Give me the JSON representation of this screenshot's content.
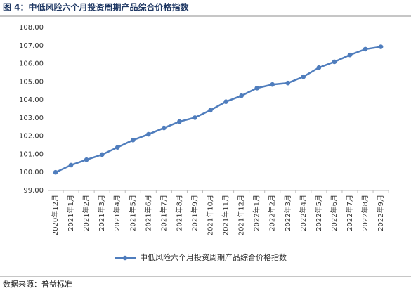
{
  "chart_data": {
    "type": "line",
    "title": "图 4：中低风险六个月投资周期产品综合价格指数",
    "source": "数据来源：普益标准",
    "categories": [
      "2020年12月",
      "2021年1月",
      "2021年2月",
      "2021年3月",
      "2021年4月",
      "2021年5月",
      "2021年6月",
      "2021年7月",
      "2021年8月",
      "2021年9月",
      "2021年10月",
      "2021年11月",
      "2021年12月",
      "2022年1月",
      "2022年2月",
      "2022年3月",
      "2022年4月",
      "2022年5月",
      "2022年6月",
      "2022年7月",
      "2022年8月",
      "2022年9月"
    ],
    "series": [
      {
        "name": "中低风险六个月投资周期产品综合价格指数",
        "color": "#4f7dbd",
        "values": [
          100.0,
          100.4,
          100.7,
          100.98,
          101.38,
          101.78,
          102.1,
          102.45,
          102.8,
          103.02,
          103.43,
          103.9,
          104.23,
          104.65,
          104.85,
          104.93,
          105.28,
          105.78,
          106.1,
          106.48,
          106.8,
          106.93
        ]
      }
    ],
    "ylim": [
      99,
      108
    ],
    "yticks": [
      {
        "value": 99,
        "label": "99.00"
      },
      {
        "value": 100,
        "label": "100.00"
      },
      {
        "value": 101,
        "label": "101.00"
      },
      {
        "value": 102,
        "label": "102.00"
      },
      {
        "value": 103,
        "label": "103.00"
      },
      {
        "value": 104,
        "label": "104.00"
      },
      {
        "value": 105,
        "label": "105.00"
      },
      {
        "value": 106,
        "label": "106.00"
      },
      {
        "value": 107,
        "label": "107.00"
      },
      {
        "value": 108,
        "label": "108.00"
      }
    ],
    "legend": "bottom"
  }
}
